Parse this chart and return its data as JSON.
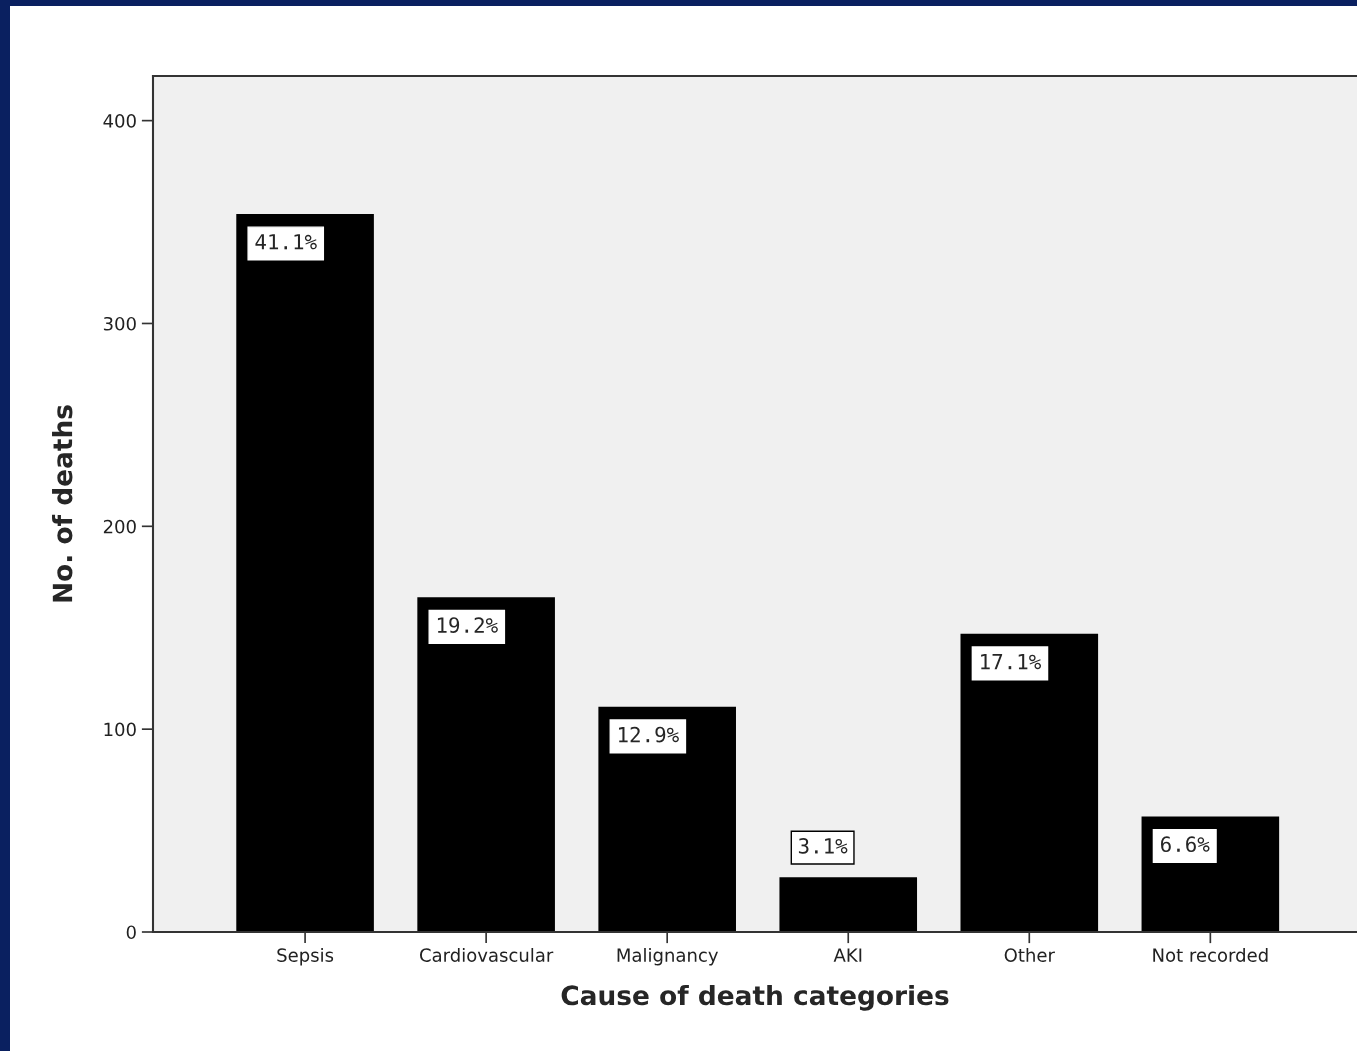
{
  "chart_data": {
    "type": "bar",
    "xlabel": "Cause of death categories",
    "ylabel": "No. of deaths",
    "categories": [
      "Sepsis",
      "Cardiovascular",
      "Malignancy",
      "AKI",
      "Other",
      "Not recorded"
    ],
    "values": [
      354,
      165,
      111,
      27,
      147,
      57
    ],
    "annotations": [
      {
        "text": "41.1%",
        "x": "Sepsis",
        "y": 354
      },
      {
        "text": "19.2%",
        "x": "Cardiovascular",
        "y": 165
      },
      {
        "text": "12.9%",
        "x": "Malignancy",
        "y": 111
      },
      {
        "text": "3.1%",
        "x": "AKI",
        "y": 27
      },
      {
        "text": "17.1%",
        "x": "Other",
        "y": 147
      },
      {
        "text": "6.6%",
        "x": "Not recorded",
        "y": 57
      }
    ],
    "color": "#000000",
    "ylim": [
      0,
      422
    ],
    "yticks": [
      0,
      100,
      200,
      300,
      400
    ],
    "grid": false,
    "legend": false
  }
}
